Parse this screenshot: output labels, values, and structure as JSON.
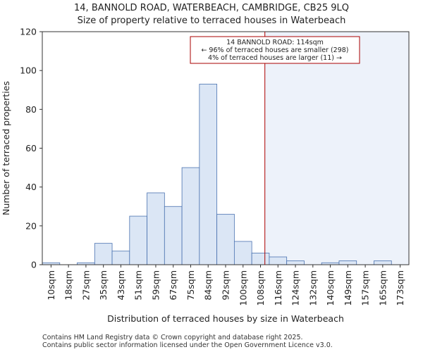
{
  "title_line1": "14, BANNOLD ROAD, WATERBEACH, CAMBRIDGE, CB25 9LQ",
  "title_line2": "Size of property relative to terraced houses in Waterbeach",
  "footer_line1": "Contains HM Land Registry data © Crown copyright and database right 2025.",
  "footer_line2": "Contains public sector information licensed under the Open Government Licence v3.0.",
  "colors": {
    "bar_fill": "#dbe6f5",
    "bar_edge": "#4a72b0",
    "highlight_fill": "#edf2fa",
    "marker_line": "#aa0000",
    "annotation_border": "#aa0000"
  },
  "chart_data": {
    "type": "bar",
    "title": "Size of property relative to terraced houses in Waterbeach",
    "xlabel": "Distribution of terraced houses by size in Waterbeach",
    "ylabel": "Number of terraced properties",
    "ylim": [
      0,
      120
    ],
    "yticks": [
      0,
      20,
      40,
      60,
      80,
      100,
      120
    ],
    "categories": [
      "10sqm",
      "18sqm",
      "27sqm",
      "35sqm",
      "43sqm",
      "51sqm",
      "59sqm",
      "67sqm",
      "75sqm",
      "84sqm",
      "92sqm",
      "100sqm",
      "108sqm",
      "116sqm",
      "124sqm",
      "132sqm",
      "140sqm",
      "149sqm",
      "157sqm",
      "165sqm",
      "173sqm"
    ],
    "values": [
      1,
      0,
      1,
      11,
      7,
      25,
      37,
      30,
      50,
      93,
      26,
      12,
      6,
      4,
      2,
      0,
      1,
      2,
      0,
      2,
      0
    ],
    "marker": {
      "value_sqm": 114,
      "bin_position": 12.75,
      "label_lines": [
        "14 BANNOLD ROAD: 114sqm",
        "← 96% of terraced houses are smaller (298)",
        "4% of terraced houses are larger (11) →"
      ]
    }
  }
}
